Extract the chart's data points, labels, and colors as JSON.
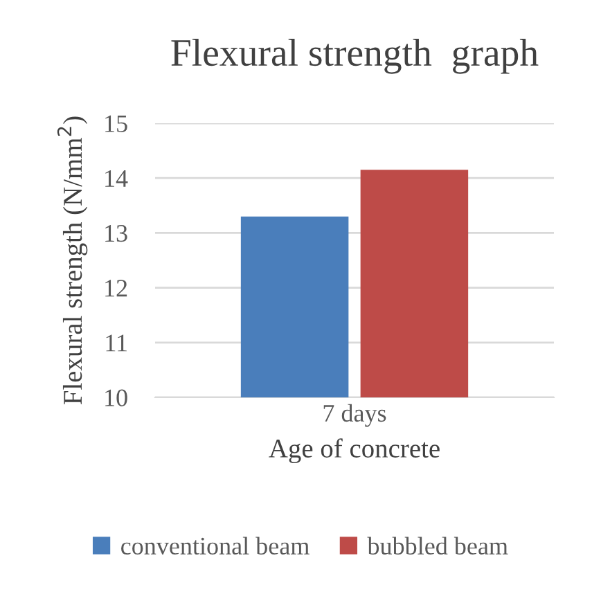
{
  "chart_data": {
    "type": "bar",
    "title": "Flexural strength  graph",
    "xlabel": "Age of concrete",
    "ylabel": "Flexural strength (N/mm$^{2}$)",
    "categories": [
      "7 days"
    ],
    "series": [
      {
        "name": "conventional beam",
        "color": "#4a7ebb",
        "values": [
          13.3
        ]
      },
      {
        "name": "bubbled beam",
        "color": "#be4b48",
        "values": [
          14.15
        ]
      }
    ],
    "ylim": [
      10,
      15
    ],
    "yticks": [
      10,
      11,
      12,
      13,
      14,
      15
    ],
    "grid": "y",
    "legend": "bottom"
  }
}
